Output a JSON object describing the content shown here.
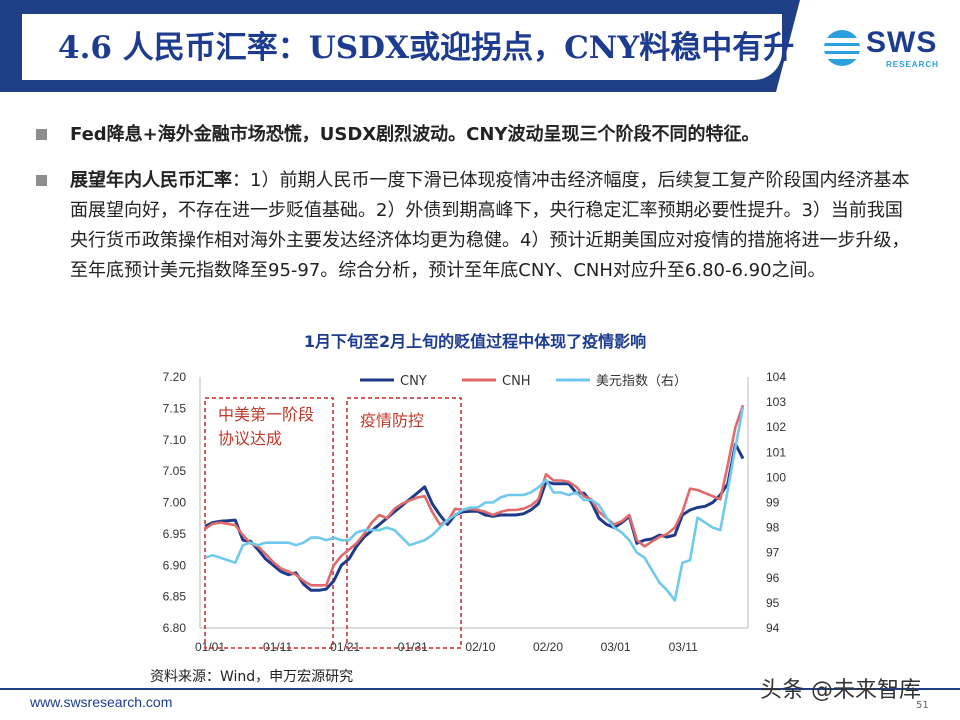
{
  "header": {
    "title": "4.6 人民币汇率：USDX或迎拐点，CNY料稳中有升",
    "logo_text": "SWS",
    "logo_sub": "RESEARCH"
  },
  "bullets": [
    {
      "lead": "Fed降息+海外金融市场恐慌，USDX剧烈波动。CNY波动呈现三个阶段不同的特征。",
      "text": ""
    },
    {
      "lead": "展望年内人民币汇率",
      "text": "：1）前期人民币一度下滑已体现疫情冲击经济幅度，后续复工复产阶段国内经济基本面展望向好，不存在进一步贬值基础。2）外债到期高峰下，央行稳定汇率预期必要性提升。3）当前我国央行货币政策操作相对海外主要发达经济体均更为稳健。4）预计近期美国应对疫情的措施将进一步升级，至年底预计美元指数降至95-97。综合分析，预计至年底CNY、CNH对应升至6.80-6.90之间。"
    }
  ],
  "chart_data": {
    "type": "line",
    "title": "1月下旬至2月上旬的贬值过程中体现了疫情影响",
    "x_ticks": [
      "01/01",
      "01/11",
      "01/21",
      "01/31",
      "02/10",
      "02/20",
      "03/01",
      "03/11"
    ],
    "y_left": {
      "range": [
        6.8,
        7.2
      ],
      "ticks": [
        "6.80",
        "6.85",
        "6.90",
        "6.95",
        "7.00",
        "7.05",
        "7.10",
        "7.15",
        "7.20"
      ]
    },
    "y_right": {
      "range": [
        94,
        104
      ],
      "ticks": [
        "94",
        "95",
        "96",
        "97",
        "98",
        "99",
        "100",
        "101",
        "102",
        "103",
        "104"
      ]
    },
    "annotations": [
      {
        "label": "中美第一阶段\n协议达成"
      },
      {
        "label": "疫情防控"
      }
    ],
    "series": [
      {
        "name": "CNY",
        "axis": "left",
        "color": "#1e3a8a",
        "points": [
          [
            0,
            6.962
          ],
          [
            1,
            6.968
          ],
          [
            2,
            6.97
          ],
          [
            3,
            6.971
          ],
          [
            4,
            6.972
          ],
          [
            5,
            6.94
          ],
          [
            6,
            6.938
          ],
          [
            7,
            6.925
          ],
          [
            8,
            6.91
          ],
          [
            9,
            6.9
          ],
          [
            10,
            6.89
          ],
          [
            11,
            6.885
          ],
          [
            12,
            6.888
          ],
          [
            13,
            6.87
          ],
          [
            14,
            6.86
          ],
          [
            15,
            6.86
          ],
          [
            16,
            6.862
          ],
          [
            17,
            6.875
          ],
          [
            18,
            6.9
          ],
          [
            19,
            6.91
          ],
          [
            20,
            6.93
          ],
          [
            21,
            6.945
          ],
          [
            22,
            6.955
          ],
          [
            23,
            6.965
          ],
          [
            24,
            6.975
          ],
          [
            25,
            6.985
          ],
          [
            26,
            6.995
          ],
          [
            27,
            7.005
          ],
          [
            28,
            7.015
          ],
          [
            29,
            7.025
          ],
          [
            30,
            6.998
          ],
          [
            31,
            6.98
          ],
          [
            32,
            6.965
          ],
          [
            33,
            6.98
          ],
          [
            34,
            6.985
          ],
          [
            35,
            6.986
          ],
          [
            36,
            6.986
          ],
          [
            37,
            6.98
          ],
          [
            38,
            6.978
          ],
          [
            39,
            6.98
          ],
          [
            40,
            6.98
          ],
          [
            41,
            6.98
          ],
          [
            42,
            6.982
          ],
          [
            43,
            6.988
          ],
          [
            44,
            6.998
          ],
          [
            45,
            7.033
          ],
          [
            46,
            7.03
          ],
          [
            47,
            7.03
          ],
          [
            48,
            7.03
          ],
          [
            49,
            7.015
          ],
          [
            50,
            7.015
          ],
          [
            51,
            7.0
          ],
          [
            52,
            6.975
          ],
          [
            53,
            6.965
          ],
          [
            54,
            6.96
          ],
          [
            55,
            6.968
          ],
          [
            56,
            6.978
          ],
          [
            57,
            6.935
          ],
          [
            58,
            6.94
          ],
          [
            59,
            6.942
          ],
          [
            60,
            6.948
          ],
          [
            61,
            6.945
          ],
          [
            62,
            6.948
          ],
          [
            63,
            6.98
          ],
          [
            64,
            6.988
          ],
          [
            65,
            6.992
          ],
          [
            66,
            6.994
          ],
          [
            67,
            7.0
          ],
          [
            68,
            7.012
          ],
          [
            69,
            7.03
          ],
          [
            70,
            7.093
          ],
          [
            71,
            7.07
          ]
        ]
      },
      {
        "name": "CNH",
        "axis": "left",
        "color": "#e06a6a",
        "points": [
          [
            0,
            6.958
          ],
          [
            1,
            6.966
          ],
          [
            2,
            6.968
          ],
          [
            3,
            6.966
          ],
          [
            4,
            6.964
          ],
          [
            5,
            6.948
          ],
          [
            6,
            6.935
          ],
          [
            7,
            6.93
          ],
          [
            8,
            6.918
          ],
          [
            9,
            6.905
          ],
          [
            10,
            6.895
          ],
          [
            11,
            6.89
          ],
          [
            12,
            6.885
          ],
          [
            13,
            6.875
          ],
          [
            14,
            6.868
          ],
          [
            15,
            6.868
          ],
          [
            16,
            6.868
          ],
          [
            17,
            6.9
          ],
          [
            18,
            6.915
          ],
          [
            19,
            6.925
          ],
          [
            20,
            6.935
          ],
          [
            21,
            6.95
          ],
          [
            22,
            6.968
          ],
          [
            23,
            6.98
          ],
          [
            24,
            6.975
          ],
          [
            25,
            6.99
          ],
          [
            26,
            6.998
          ],
          [
            27,
            7.003
          ],
          [
            28,
            7.008
          ],
          [
            29,
            7.01
          ],
          [
            30,
            6.985
          ],
          [
            31,
            6.965
          ],
          [
            32,
            6.97
          ],
          [
            33,
            6.99
          ],
          [
            34,
            6.988
          ],
          [
            35,
            6.99
          ],
          [
            36,
            6.988
          ],
          [
            37,
            6.985
          ],
          [
            38,
            6.98
          ],
          [
            39,
            6.985
          ],
          [
            40,
            6.988
          ],
          [
            41,
            6.988
          ],
          [
            42,
            6.99
          ],
          [
            43,
            6.995
          ],
          [
            44,
            7.005
          ],
          [
            45,
            7.045
          ],
          [
            46,
            7.035
          ],
          [
            47,
            7.035
          ],
          [
            48,
            7.033
          ],
          [
            49,
            7.025
          ],
          [
            50,
            7.01
          ],
          [
            51,
            7.005
          ],
          [
            52,
            6.985
          ],
          [
            53,
            6.975
          ],
          [
            54,
            6.965
          ],
          [
            55,
            6.97
          ],
          [
            56,
            6.98
          ],
          [
            57,
            6.94
          ],
          [
            58,
            6.93
          ],
          [
            59,
            6.938
          ],
          [
            60,
            6.945
          ],
          [
            61,
            6.95
          ],
          [
            62,
            6.96
          ],
          [
            63,
            6.985
          ],
          [
            64,
            7.022
          ],
          [
            65,
            7.02
          ],
          [
            66,
            7.015
          ],
          [
            67,
            7.01
          ],
          [
            68,
            7.005
          ],
          [
            69,
            7.06
          ],
          [
            70,
            7.12
          ],
          [
            71,
            7.155
          ]
        ]
      },
      {
        "name": "美元指数（右）",
        "axis": "right",
        "color": "#6fc8ee",
        "points": [
          [
            0,
            96.8
          ],
          [
            1,
            96.9
          ],
          [
            2,
            96.8
          ],
          [
            3,
            96.7
          ],
          [
            4,
            96.6
          ],
          [
            5,
            97.3
          ],
          [
            6,
            97.4
          ],
          [
            7,
            97.3
          ],
          [
            8,
            97.4
          ],
          [
            9,
            97.4
          ],
          [
            10,
            97.4
          ],
          [
            11,
            97.4
          ],
          [
            12,
            97.3
          ],
          [
            13,
            97.4
          ],
          [
            14,
            97.6
          ],
          [
            15,
            97.6
          ],
          [
            16,
            97.5
          ],
          [
            17,
            97.6
          ],
          [
            18,
            97.5
          ],
          [
            19,
            97.5
          ],
          [
            20,
            97.8
          ],
          [
            21,
            97.9
          ],
          [
            22,
            97.9
          ],
          [
            23,
            97.9
          ],
          [
            24,
            98.0
          ],
          [
            25,
            97.9
          ],
          [
            26,
            97.6
          ],
          [
            27,
            97.3
          ],
          [
            28,
            97.4
          ],
          [
            29,
            97.5
          ],
          [
            30,
            97.7
          ],
          [
            31,
            98.0
          ],
          [
            32,
            98.3
          ],
          [
            33,
            98.5
          ],
          [
            34,
            98.7
          ],
          [
            35,
            98.8
          ],
          [
            36,
            98.8
          ],
          [
            37,
            99.0
          ],
          [
            38,
            99.0
          ],
          [
            39,
            99.2
          ],
          [
            40,
            99.3
          ],
          [
            41,
            99.3
          ],
          [
            42,
            99.3
          ],
          [
            43,
            99.4
          ],
          [
            44,
            99.6
          ],
          [
            45,
            99.9
          ],
          [
            46,
            99.4
          ],
          [
            47,
            99.4
          ],
          [
            48,
            99.3
          ],
          [
            49,
            99.4
          ],
          [
            50,
            99.1
          ],
          [
            51,
            99.1
          ],
          [
            52,
            98.9
          ],
          [
            53,
            98.4
          ],
          [
            54,
            98.0
          ],
          [
            55,
            97.8
          ],
          [
            56,
            97.5
          ],
          [
            57,
            97.0
          ],
          [
            58,
            96.8
          ],
          [
            59,
            96.3
          ],
          [
            60,
            95.8
          ],
          [
            61,
            95.5
          ],
          [
            62,
            95.1
          ],
          [
            63,
            96.6
          ],
          [
            64,
            96.7
          ],
          [
            65,
            98.4
          ],
          [
            66,
            98.2
          ],
          [
            67,
            98.0
          ],
          [
            68,
            97.9
          ],
          [
            69,
            99.5
          ],
          [
            70,
            101.2
          ],
          [
            71,
            102.8
          ]
        ]
      }
    ],
    "x_count": 72,
    "legend": "top-center",
    "grid": false
  },
  "source": "资料来源：Wind，申万宏源研究",
  "footer": {
    "url": "www.swsresearch.com",
    "page": "51",
    "watermark": "头条 @未来智库"
  }
}
